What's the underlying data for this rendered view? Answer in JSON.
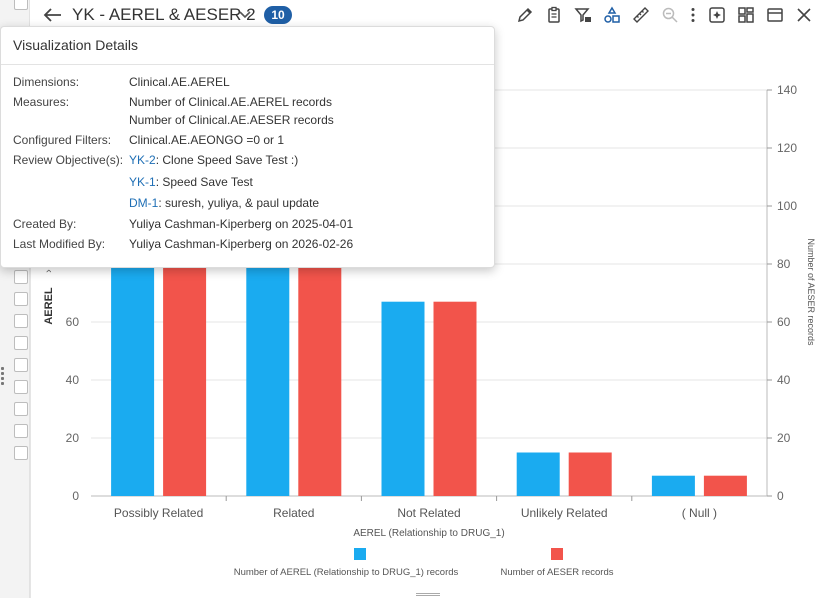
{
  "header": {
    "title": "YK - AEREL & AESER 2",
    "count": "10"
  },
  "toolbar": {
    "icons": [
      "pencil-icon",
      "clipboard-icon",
      "filter-settings-icon",
      "shapes-icon",
      "ruler-icon",
      "zoom-out-icon",
      "more-vert-icon",
      "sparkle-settings-icon",
      "layout-icon",
      "window-icon",
      "close-icon"
    ]
  },
  "details": {
    "heading": "Visualization Details",
    "dimensions_label": "Dimensions:",
    "dimensions_value": "Clinical.AE.AEREL",
    "measures_label": "Measures:",
    "measures_1": "Number of Clinical.AE.AEREL records",
    "measures_2": "Number of Clinical.AE.AESER records",
    "filters_label": "Configured Filters:",
    "filters_value": "Clinical.AE.AEONGO =0 or 1",
    "objectives_label": "Review Objective(s):",
    "objectives": [
      {
        "id": "YK-2",
        "text": ": Clone Speed Save Test :)"
      },
      {
        "id": "YK-1",
        "text": ": Speed Save Test"
      },
      {
        "id": "DM-1",
        "text": ": suresh, yuliya, & paul update"
      }
    ],
    "created_label": "Created By:",
    "created_value": "Yuliya Cashman-Kiperberg on 2025-04-01",
    "modified_label": "Last Modified By:",
    "modified_value": "Yuliya Cashman-Kiperberg on 2026-02-26"
  },
  "chart_data": {
    "type": "bar",
    "categories": [
      "Possibly Related",
      "Related",
      "Not Related",
      "Unlikely Related",
      "( Null )"
    ],
    "series": [
      {
        "name": "Number of AEREL  (Relationship to DRUG_1) records",
        "values": [
          80,
          80,
          67,
          15,
          7
        ],
        "color": "#1aabf0"
      },
      {
        "name": "Number of AESER records",
        "values": [
          80,
          80,
          67,
          15,
          7
        ],
        "color": "#f2544b"
      }
    ],
    "xlabel": "AEREL  (Relationship to DRUG_1)",
    "ylabel_left": "AEREL",
    "ylabel_right": "Number of AESER records",
    "ylim": [
      0,
      140
    ],
    "left_ticks": [
      0,
      20,
      40,
      60
    ],
    "right_ticks": [
      0,
      20,
      40,
      60,
      80,
      100,
      120,
      140
    ],
    "legend_position": "bottom",
    "grid": true
  }
}
